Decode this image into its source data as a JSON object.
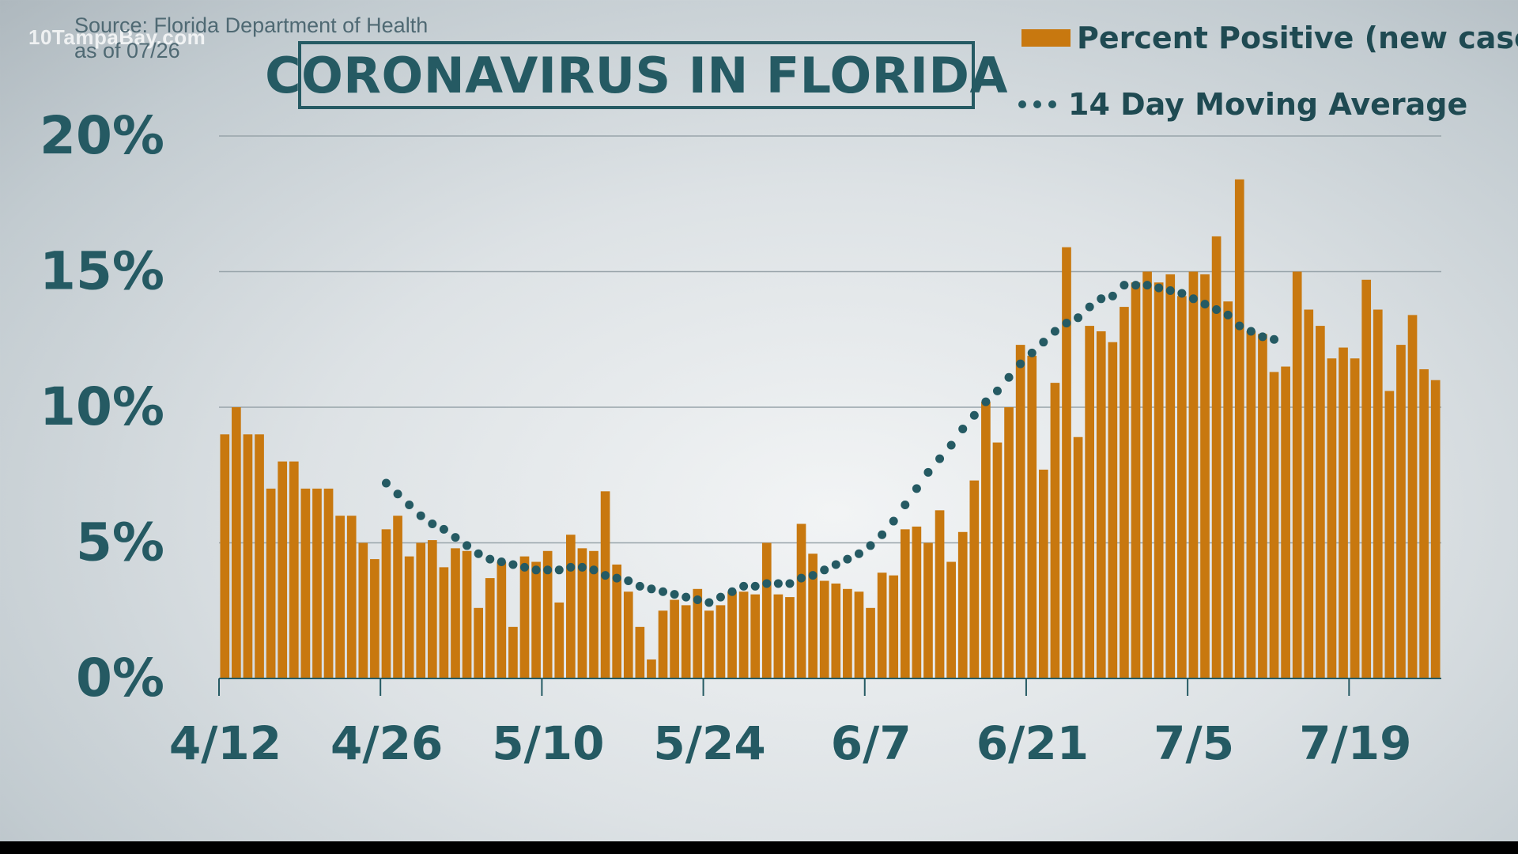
{
  "watermark": "10TampaBay.com",
  "source": {
    "line1": "Source: Florida Department of Health",
    "line2": "as of 07/26"
  },
  "title": "CORONAVIRUS IN FLORIDA",
  "colors": {
    "bar": "#c8780f",
    "dots": "#255a63",
    "text": "#255a63",
    "grid": "#98a4aa"
  },
  "legend": {
    "bar_label": "Percent Positive (new cases)",
    "line_label": "14 Day Moving Average"
  },
  "chart_data": {
    "type": "bar",
    "title": "CORONAVIRUS IN FLORIDA",
    "ylim": [
      0,
      20
    ],
    "yticks": [
      "0%",
      "5%",
      "10%",
      "15%",
      "20%"
    ],
    "ytick_values": [
      0,
      5,
      10,
      15,
      20
    ],
    "xtick_labels": [
      "4/12",
      "4/26",
      "5/10",
      "5/24",
      "6/7",
      "6/21",
      "7/5",
      "7/19"
    ],
    "xtick_index": [
      0,
      14,
      28,
      42,
      56,
      70,
      84,
      98
    ],
    "grid": true,
    "series": [
      {
        "name": "Percent Positive (new cases)",
        "type": "bar",
        "values": [
          9.0,
          10.0,
          9.0,
          9.0,
          7.0,
          8.0,
          8.0,
          7.0,
          7.0,
          7.0,
          6.0,
          6.0,
          5.0,
          4.4,
          5.5,
          6.0,
          4.5,
          5.0,
          5.1,
          4.1,
          4.8,
          4.7,
          2.6,
          3.7,
          4.3,
          1.9,
          4.5,
          4.3,
          4.7,
          2.8,
          5.3,
          4.8,
          4.7,
          6.9,
          4.2,
          3.2,
          1.9,
          0.7,
          2.5,
          2.9,
          2.7,
          3.3,
          2.5,
          2.7,
          3.2,
          3.2,
          3.1,
          5.0,
          3.1,
          3.0,
          5.7,
          4.6,
          3.6,
          3.5,
          3.3,
          3.2,
          2.6,
          3.9,
          3.8,
          5.5,
          5.6,
          5.0,
          6.2,
          4.3,
          5.4,
          7.3,
          10.2,
          8.7,
          10.0,
          12.3,
          11.9,
          7.7,
          10.9,
          15.9,
          8.9,
          13.0,
          12.8,
          12.4,
          13.7,
          14.6,
          15.0,
          14.6,
          14.9,
          14.1,
          15.0,
          14.9,
          16.3,
          13.9,
          18.4,
          12.8,
          12.7,
          11.3,
          11.5,
          15.0,
          13.6,
          13.0,
          11.8,
          12.2,
          11.8,
          14.7,
          13.6,
          10.6,
          12.3,
          13.4,
          11.4,
          11.0
        ]
      },
      {
        "name": "14 Day Moving Average",
        "type": "dotted-line",
        "start_index": 14,
        "values": [
          7.2,
          6.8,
          6.4,
          6.0,
          5.7,
          5.5,
          5.2,
          4.9,
          4.6,
          4.4,
          4.3,
          4.2,
          4.1,
          4.0,
          4.0,
          4.0,
          4.1,
          4.1,
          4.0,
          3.8,
          3.7,
          3.6,
          3.4,
          3.3,
          3.2,
          3.1,
          3.0,
          2.9,
          2.8,
          3.0,
          3.2,
          3.4,
          3.4,
          3.5,
          3.5,
          3.5,
          3.7,
          3.8,
          4.0,
          4.2,
          4.4,
          4.6,
          4.9,
          5.3,
          5.8,
          6.4,
          7.0,
          7.6,
          8.1,
          8.6,
          9.2,
          9.7,
          10.2,
          10.6,
          11.1,
          11.6,
          12.0,
          12.4,
          12.8,
          13.1,
          13.3,
          13.7,
          14.0,
          14.1,
          14.5,
          14.5,
          14.5,
          14.4,
          14.3,
          14.2,
          14.0,
          13.8,
          13.6,
          13.4,
          13.0,
          12.8,
          12.6,
          12.5
        ]
      }
    ]
  }
}
